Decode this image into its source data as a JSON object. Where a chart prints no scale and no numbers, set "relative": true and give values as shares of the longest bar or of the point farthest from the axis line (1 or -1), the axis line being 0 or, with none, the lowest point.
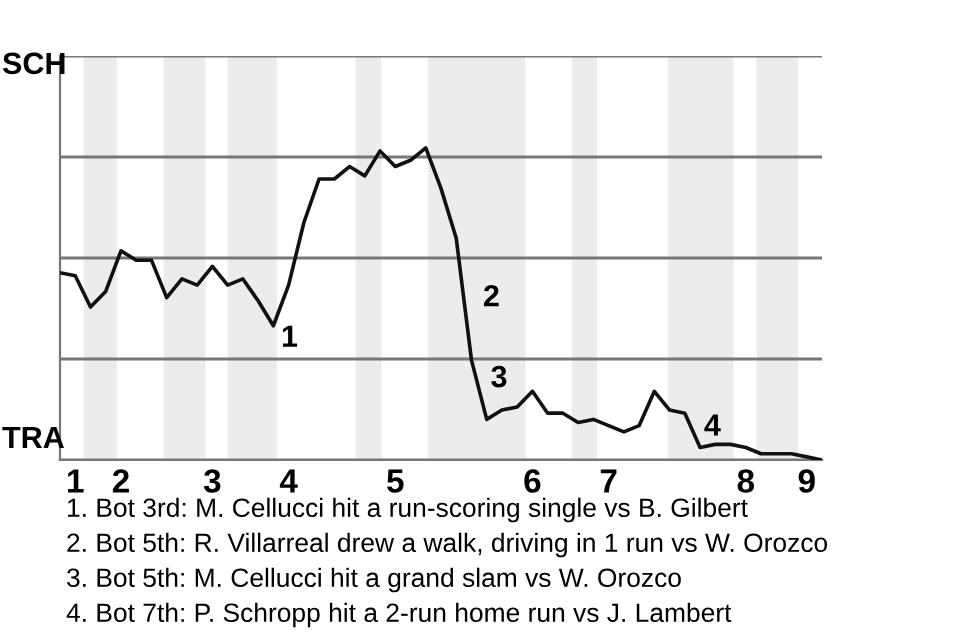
{
  "chart_data": {
    "type": "line",
    "relative": true,
    "categories": [
      null,
      "1",
      null,
      null,
      "2",
      null,
      null,
      null,
      null,
      null,
      "3",
      null,
      null,
      null,
      null,
      "4",
      null,
      null,
      null,
      null,
      null,
      null,
      "5",
      null,
      null,
      null,
      null,
      null,
      null,
      null,
      null,
      "6",
      null,
      null,
      null,
      null,
      "7",
      null,
      null,
      null,
      null,
      null,
      null,
      null,
      null,
      "8",
      null,
      null,
      null,
      "9",
      null
    ],
    "series": [
      {
        "color": "#111111",
        "values": [
          0.6,
          0.59,
          0.49,
          0.54,
          0.67,
          0.64,
          0.64,
          0.52,
          0.58,
          0.56,
          0.62,
          0.56,
          0.58,
          0.51,
          0.43,
          0.56,
          0.76,
          0.9,
          0.9,
          0.94,
          0.91,
          0.99,
          0.94,
          0.96,
          1,
          0.87,
          0.71,
          0.32,
          0.13,
          0.16,
          0.17,
          0.22,
          0.15,
          0.15,
          0.12,
          0.13,
          0.11,
          0.09,
          0.11,
          0.22,
          0.16,
          0.15,
          0.04,
          0.05,
          0.05,
          0.04,
          0.02,
          0.02,
          0.02,
          0.01,
          0
        ]
      }
    ],
    "grid": "y",
    "line_style": "solid",
    "marker": "none",
    "annotations": [
      "SCH",
      "TRA",
      "1",
      "2",
      "3",
      "4",
      "1. Bot 3rd: M. Cellucci hit a run-scoring single vs B. Gilbert",
      "2. Bot 5th: R. Villarreal drew a walk, driving in 1 run vs W. Orozco",
      "3. Bot 5th: M. Cellucci hit a grand slam vs W. Orozco",
      "4. Bot 7th: P. Schropp hit a 2-run home run vs J. Lambert"
    ]
  }
}
